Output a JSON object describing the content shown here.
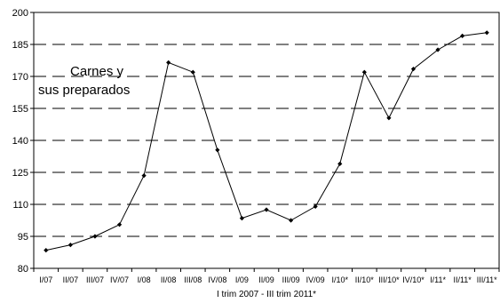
{
  "chart_data": {
    "type": "line",
    "title": "",
    "annotation_lines": [
      "Carnes y",
      "sus preparados"
    ],
    "xlabel": "I trim 2007 - III trim 2011*",
    "ylabel": "",
    "ylim": [
      80,
      200
    ],
    "yticks": [
      80,
      95,
      110,
      125,
      140,
      155,
      170,
      185,
      200
    ],
    "grid": "horizontal dashed",
    "legend": "none",
    "categories": [
      "I/07",
      "II/07",
      "III/07",
      "IV/07",
      "I/08",
      "II/08",
      "III/08",
      "IV/08",
      "I/09",
      "II/09",
      "III/09",
      "IV/09",
      "I/10*",
      "II/10*",
      "III/10*",
      "IV/10*",
      "I/11*",
      "II/11*",
      "III/11*"
    ],
    "series": [
      {
        "values": [
          88.5,
          91,
          95,
          100.5,
          123.5,
          176.5,
          172,
          135.5,
          103.5,
          107.5,
          102.5,
          109,
          129,
          172,
          150.5,
          173.5,
          182.5,
          189,
          190.5
        ],
        "color": "#000000"
      }
    ]
  }
}
